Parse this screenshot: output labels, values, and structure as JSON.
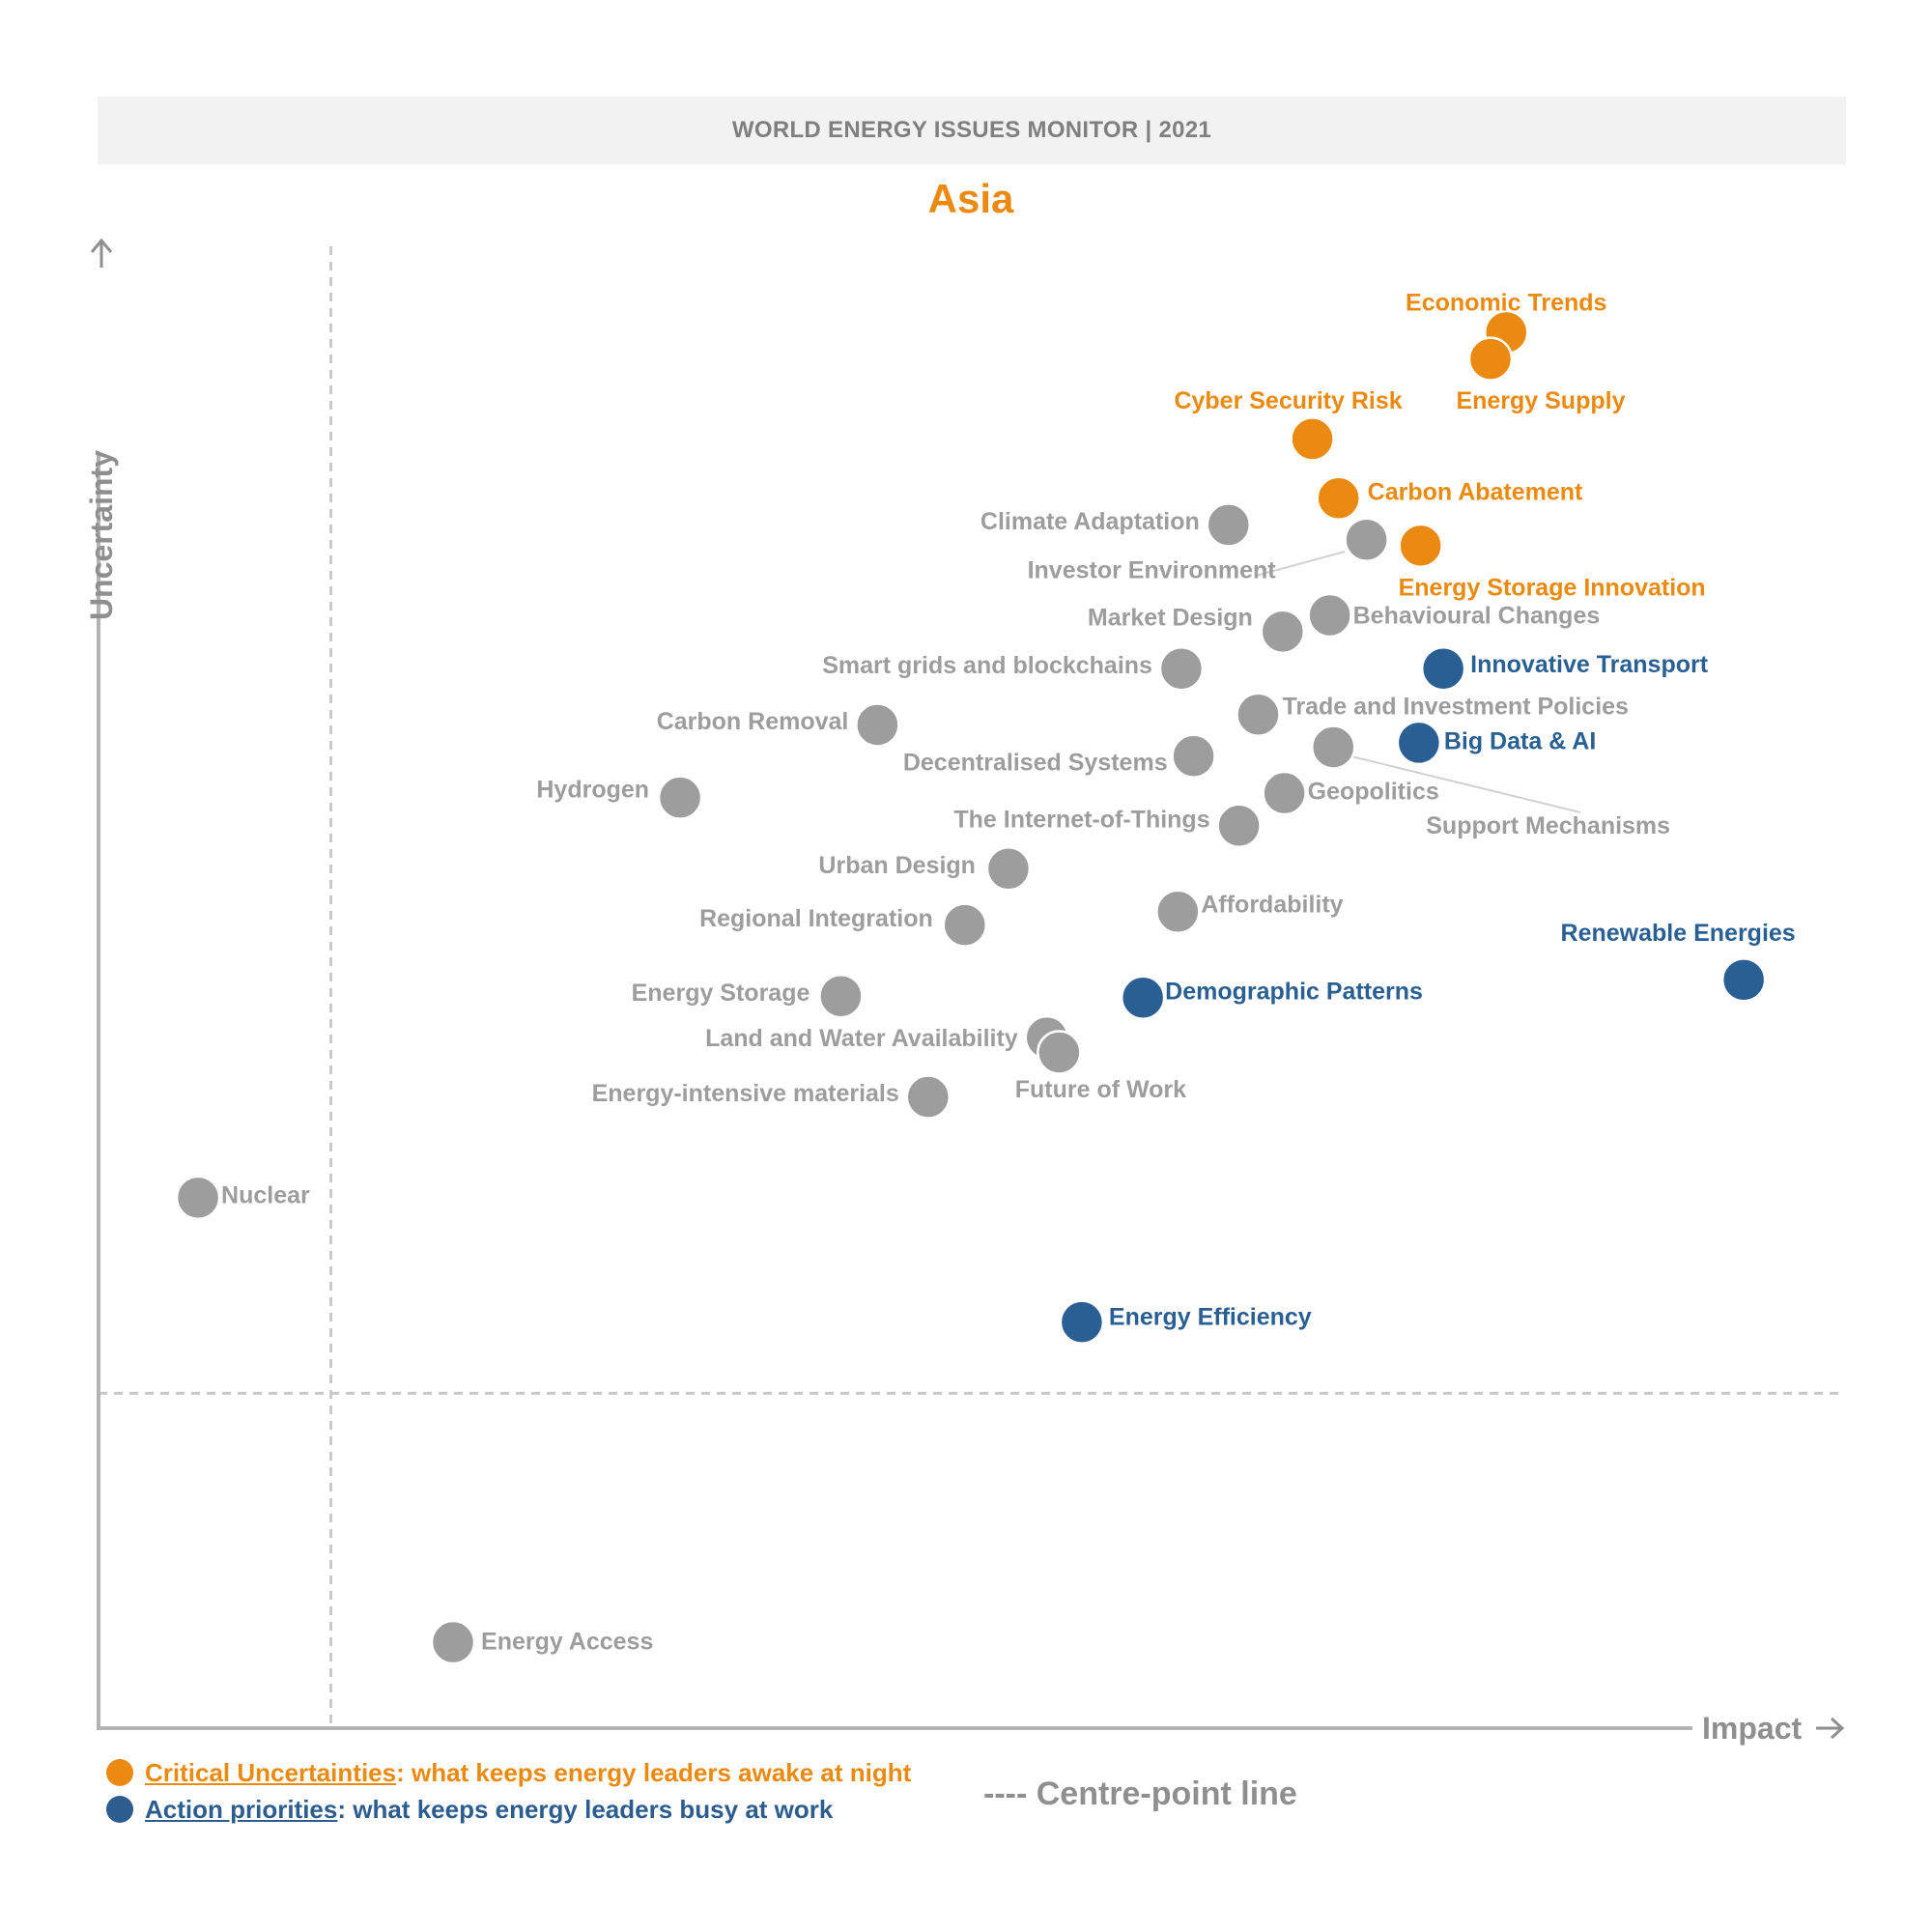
{
  "header": {
    "title": "WORLD ENERGY ISSUES MONITOR | 2021"
  },
  "region": "Asia",
  "colors": {
    "uncertainty": "#ea8a10",
    "action": "#2a5f93",
    "neutral": "#9d9d9d",
    "axis": "#b3b3b3"
  },
  "legend": {
    "uncertainties_term": "Critical Uncertainties",
    "uncertainties_text": ": what keeps energy leaders awake at night",
    "action_term": "Action priorities",
    "action_text": ": what keeps energy leaders busy at work",
    "centre_line": "---- Centre-point line"
  },
  "chart_data": {
    "type": "scatter",
    "title": "Asia",
    "xlabel": "Impact",
    "ylabel": "Uncertainty",
    "xlim": [
      0,
      100
    ],
    "ylim": [
      0,
      100
    ],
    "centre_point": {
      "x": 13.3,
      "y": 22.6
    },
    "grid": false,
    "legend_position": "bottom-left",
    "categories": [
      "uncertainty",
      "action",
      "neutral"
    ],
    "points": [
      {
        "label": "Economic Trends",
        "x": 80.6,
        "y": 94.2,
        "category": "uncertainty"
      },
      {
        "label": "Energy Supply",
        "x": 79.7,
        "y": 92.4,
        "category": "uncertainty"
      },
      {
        "label": "Cyber Security Risk",
        "x": 69.5,
        "y": 87.0,
        "category": "uncertainty"
      },
      {
        "label": "Carbon Abatement",
        "x": 71.0,
        "y": 83.0,
        "category": "uncertainty"
      },
      {
        "label": "Energy Storage Innovation",
        "x": 75.7,
        "y": 79.8,
        "category": "uncertainty"
      },
      {
        "label": "Climate Adaptation",
        "x": 64.7,
        "y": 81.2,
        "category": "neutral"
      },
      {
        "label": "Investor Environment",
        "x": 72.6,
        "y": 80.2,
        "category": "neutral"
      },
      {
        "label": "Behavioural Changes",
        "x": 70.5,
        "y": 75.1,
        "category": "neutral"
      },
      {
        "label": "Market Design",
        "x": 67.8,
        "y": 74.0,
        "category": "neutral"
      },
      {
        "label": "Innovative Transport",
        "x": 77.0,
        "y": 71.5,
        "category": "action"
      },
      {
        "label": "Smart grids and blockchains",
        "x": 62.0,
        "y": 71.5,
        "category": "neutral"
      },
      {
        "label": "Trade and Investment Policies",
        "x": 66.4,
        "y": 68.4,
        "category": "neutral"
      },
      {
        "label": "Big Data & AI",
        "x": 75.6,
        "y": 66.5,
        "category": "action"
      },
      {
        "label": "Support Mechanisms",
        "x": 70.7,
        "y": 66.2,
        "category": "neutral"
      },
      {
        "label": "Carbon Removal",
        "x": 44.6,
        "y": 67.7,
        "category": "neutral"
      },
      {
        "label": "Decentralised Systems",
        "x": 62.7,
        "y": 65.6,
        "category": "neutral"
      },
      {
        "label": "Hydrogen",
        "x": 33.3,
        "y": 62.8,
        "category": "neutral"
      },
      {
        "label": "Geopolitics",
        "x": 67.9,
        "y": 63.1,
        "category": "neutral"
      },
      {
        "label": "The Internet-of-Things",
        "x": 65.3,
        "y": 60.9,
        "category": "neutral"
      },
      {
        "label": "Urban Design",
        "x": 52.1,
        "y": 58.0,
        "category": "neutral"
      },
      {
        "label": "Affordability",
        "x": 61.8,
        "y": 55.1,
        "category": "neutral"
      },
      {
        "label": "Regional Integration",
        "x": 49.6,
        "y": 54.2,
        "category": "neutral"
      },
      {
        "label": "Renewable Energies",
        "x": 94.2,
        "y": 50.5,
        "category": "action"
      },
      {
        "label": "Demographic Patterns",
        "x": 59.8,
        "y": 49.3,
        "category": "action"
      },
      {
        "label": "Energy Storage",
        "x": 42.5,
        "y": 49.4,
        "category": "neutral"
      },
      {
        "label": "Land and Water Availability",
        "x": 54.3,
        "y": 46.6,
        "category": "neutral"
      },
      {
        "label": "Future of Work",
        "x": 55.0,
        "y": 45.6,
        "category": "neutral"
      },
      {
        "label": "Energy-intensive materials",
        "x": 47.5,
        "y": 42.6,
        "category": "neutral"
      },
      {
        "label": "Nuclear",
        "x": 5.7,
        "y": 35.8,
        "category": "neutral"
      },
      {
        "label": "Energy Efficiency",
        "x": 56.3,
        "y": 27.4,
        "category": "action"
      },
      {
        "label": "Energy Access",
        "x": 20.3,
        "y": 5.8,
        "category": "neutral"
      }
    ]
  }
}
